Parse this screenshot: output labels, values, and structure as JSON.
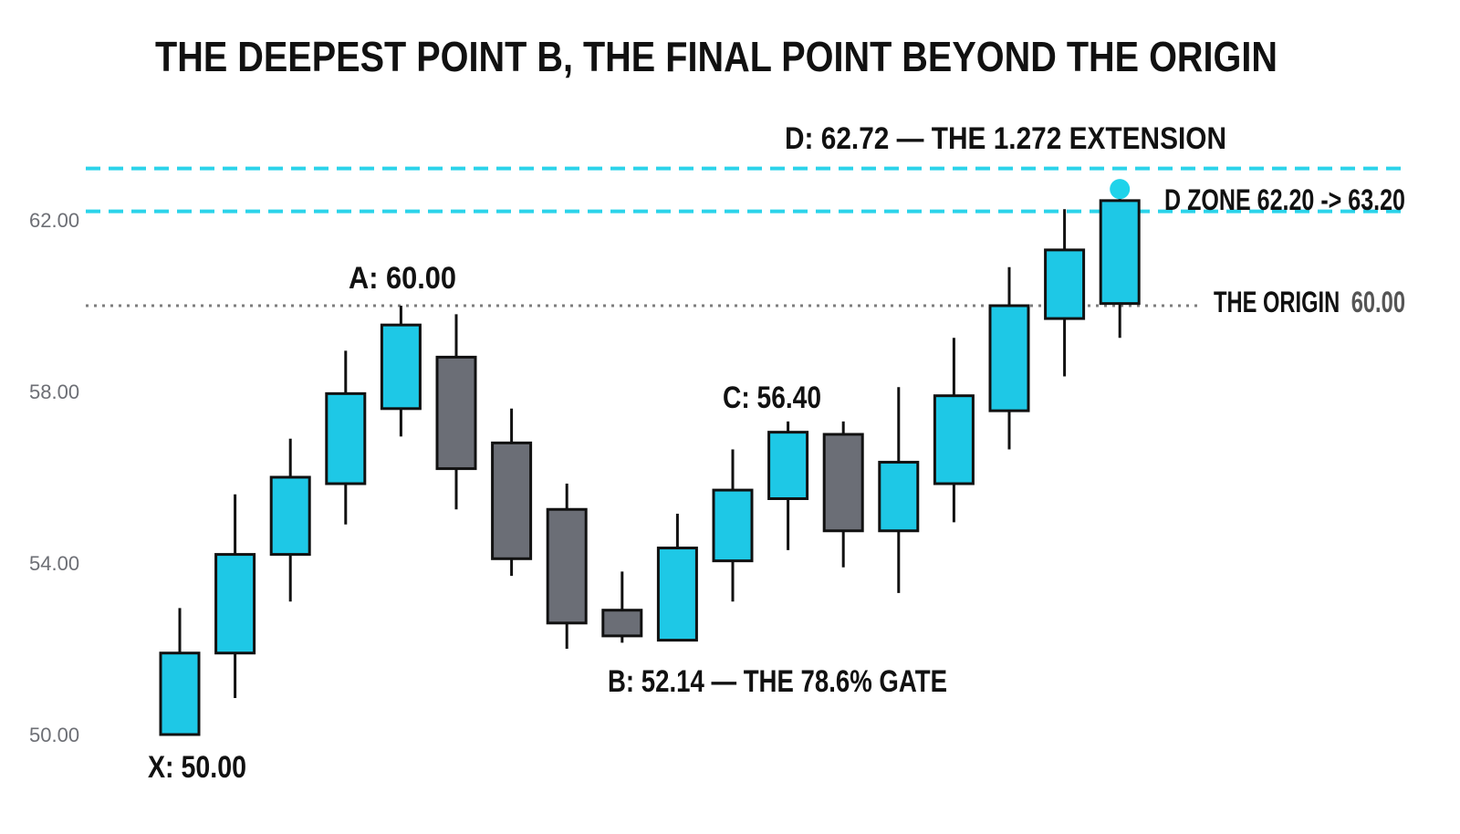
{
  "chart_data": {
    "type": "candlestick",
    "title": "THE DEEPEST POINT B, THE FINAL POINT BEYOND THE ORIGIN",
    "xlabel": "",
    "ylabel": "",
    "ylim": [
      49,
      63.4
    ],
    "y_ticks": [
      {
        "value": 50,
        "label": "50.00"
      },
      {
        "value": 54,
        "label": "54.00"
      },
      {
        "value": 58,
        "label": "58.00"
      },
      {
        "value": 62,
        "label": "62.00"
      }
    ],
    "grid": false,
    "colors": {
      "bull": "#1ec8e6",
      "bear": "#6b6e76",
      "outline": "#111111",
      "zone_line": "#2bd3ea",
      "origin_line": "#808080",
      "d_marker": "#1fd3ea"
    },
    "candles": [
      {
        "open": 50.0,
        "high": 52.95,
        "low": 50.0,
        "close": 51.9,
        "dir": "up"
      },
      {
        "open": 51.9,
        "high": 55.6,
        "low": 50.85,
        "close": 54.2,
        "dir": "up"
      },
      {
        "open": 54.2,
        "high": 56.9,
        "low": 53.1,
        "close": 56.0,
        "dir": "up"
      },
      {
        "open": 55.85,
        "high": 58.95,
        "low": 54.9,
        "close": 57.95,
        "dir": "up"
      },
      {
        "open": 57.6,
        "high": 60.0,
        "low": 56.95,
        "close": 59.55,
        "dir": "up"
      },
      {
        "open": 58.8,
        "high": 59.8,
        "low": 55.25,
        "close": 56.2,
        "dir": "down"
      },
      {
        "open": 56.8,
        "high": 57.6,
        "low": 53.7,
        "close": 54.1,
        "dir": "down"
      },
      {
        "open": 55.25,
        "high": 55.85,
        "low": 52.0,
        "close": 52.6,
        "dir": "down"
      },
      {
        "open": 52.9,
        "high": 53.8,
        "low": 52.14,
        "close": 52.3,
        "dir": "down"
      },
      {
        "open": 52.2,
        "high": 55.15,
        "low": 52.2,
        "close": 54.35,
        "dir": "up"
      },
      {
        "open": 54.05,
        "high": 56.65,
        "low": 53.1,
        "close": 55.7,
        "dir": "up"
      },
      {
        "open": 55.5,
        "high": 57.3,
        "low": 54.3,
        "close": 57.05,
        "dir": "up"
      },
      {
        "open": 57.0,
        "high": 57.3,
        "low": 53.9,
        "close": 54.75,
        "dir": "down"
      },
      {
        "open": 54.75,
        "high": 58.1,
        "low": 53.3,
        "close": 56.35,
        "dir": "up"
      },
      {
        "open": 55.85,
        "high": 59.25,
        "low": 54.95,
        "close": 57.9,
        "dir": "up"
      },
      {
        "open": 57.55,
        "high": 60.9,
        "low": 56.65,
        "close": 60.0,
        "dir": "up"
      },
      {
        "open": 59.7,
        "high": 62.25,
        "low": 58.35,
        "close": 61.3,
        "dir": "up"
      },
      {
        "open": 60.05,
        "high": 62.72,
        "low": 59.25,
        "close": 62.45,
        "dir": "up"
      }
    ],
    "levels": {
      "d_zone_low": 62.2,
      "d_zone_high": 63.2,
      "origin": 60.0,
      "d_point": 62.72
    },
    "annotations": {
      "x_point": "X: 50.00",
      "a_point": "A: 60.00",
      "b_point": "B: 52.14 — THE 78.6% GATE",
      "c_point": "C: 56.40",
      "d_point": "D: 62.72 — THE 1.272 EXTENSION",
      "d_zone": "D ZONE 62.20 -> 63.20",
      "origin_label": "THE ORIGIN",
      "origin_value": "60.00"
    }
  }
}
